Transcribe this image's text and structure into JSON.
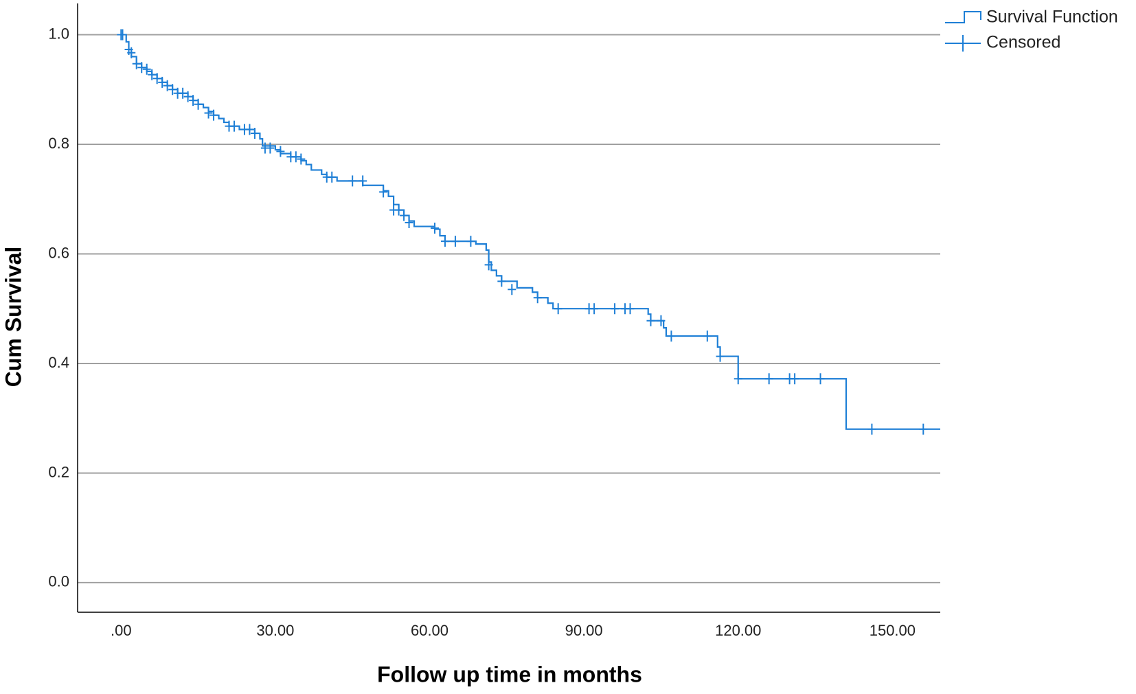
{
  "chart_data": {
    "type": "kaplan-meier",
    "xlabel": "Follow up time in months",
    "ylabel": "Cum Survival",
    "xlim": [
      -8.45,
      159.3
    ],
    "ylim": [
      -0.054,
      1.057
    ],
    "xticks": [
      {
        "value": 0,
        "label": ".00"
      },
      {
        "value": 30,
        "label": "30.00"
      },
      {
        "value": 60,
        "label": "60.00"
      },
      {
        "value": 90,
        "label": "90.00"
      },
      {
        "value": 120,
        "label": "120.00"
      },
      {
        "value": 150,
        "label": "150.00"
      }
    ],
    "yticks": [
      {
        "value": 0,
        "label": "0.0"
      },
      0.2,
      0.4,
      0.6,
      0.8,
      {
        "value": 1,
        "label": "1.0"
      }
    ],
    "grid": true,
    "legend": "top-right",
    "series": [
      {
        "name": "Survival Function",
        "style": "step",
        "color": "#1e7fd6",
        "x": [
          0,
          1,
          1.5,
          2,
          3,
          4,
          5,
          6,
          7,
          8,
          9,
          10,
          11,
          13,
          14,
          15,
          16,
          17,
          18,
          19,
          20,
          21,
          23,
          26,
          27,
          27.5,
          30,
          31,
          33,
          35,
          36,
          37,
          39,
          40,
          42,
          47,
          51,
          52,
          53,
          54,
          55,
          56,
          57,
          61,
          62,
          63,
          69,
          71,
          71.5,
          72,
          73,
          74,
          77,
          80,
          81,
          83,
          84,
          102.5,
          103,
          105.5,
          106,
          116,
          116.5,
          120,
          141,
          159.3
        ],
        "values": [
          1.0,
          0.987,
          0.973,
          0.96,
          0.947,
          0.94,
          0.933,
          0.927,
          0.92,
          0.913,
          0.907,
          0.9,
          0.893,
          0.887,
          0.88,
          0.873,
          0.867,
          0.86,
          0.853,
          0.847,
          0.84,
          0.833,
          0.827,
          0.82,
          0.81,
          0.797,
          0.79,
          0.783,
          0.777,
          0.77,
          0.763,
          0.753,
          0.745,
          0.74,
          0.733,
          0.725,
          0.715,
          0.705,
          0.69,
          0.68,
          0.67,
          0.66,
          0.65,
          0.645,
          0.633,
          0.623,
          0.618,
          0.607,
          0.585,
          0.57,
          0.56,
          0.55,
          0.538,
          0.53,
          0.52,
          0.51,
          0.5,
          0.49,
          0.478,
          0.465,
          0.45,
          0.43,
          0.413,
          0.372,
          0.28,
          0.28
        ]
      },
      {
        "name": "Censored",
        "style": "marker",
        "color": "#1e7fd6",
        "x": [
          0,
          0.3,
          1.5,
          2,
          3,
          4,
          5,
          6,
          7,
          8,
          9,
          10,
          11,
          12,
          13,
          14,
          15,
          17,
          18,
          21,
          22,
          24,
          25,
          26,
          28,
          29,
          31,
          33,
          34,
          35,
          40,
          41,
          45,
          47,
          51,
          53,
          54,
          55,
          56,
          61,
          63,
          65,
          68,
          71.5,
          74,
          76,
          81,
          85,
          91,
          92,
          96,
          98,
          99,
          103,
          105,
          107,
          114,
          116.5,
          120,
          126,
          130,
          131,
          136,
          146,
          156
        ],
        "values": [
          1.0,
          1.0,
          0.973,
          0.967,
          0.947,
          0.94,
          0.937,
          0.927,
          0.92,
          0.913,
          0.907,
          0.9,
          0.893,
          0.893,
          0.887,
          0.88,
          0.873,
          0.857,
          0.853,
          0.833,
          0.833,
          0.827,
          0.827,
          0.82,
          0.793,
          0.793,
          0.787,
          0.777,
          0.777,
          0.773,
          0.74,
          0.74,
          0.733,
          0.733,
          0.713,
          0.68,
          0.68,
          0.67,
          0.657,
          0.647,
          0.623,
          0.623,
          0.623,
          0.58,
          0.55,
          0.535,
          0.52,
          0.5,
          0.5,
          0.5,
          0.5,
          0.5,
          0.5,
          0.478,
          0.478,
          0.45,
          0.45,
          0.413,
          0.372,
          0.372,
          0.372,
          0.372,
          0.372,
          0.28,
          0.28
        ]
      }
    ]
  }
}
